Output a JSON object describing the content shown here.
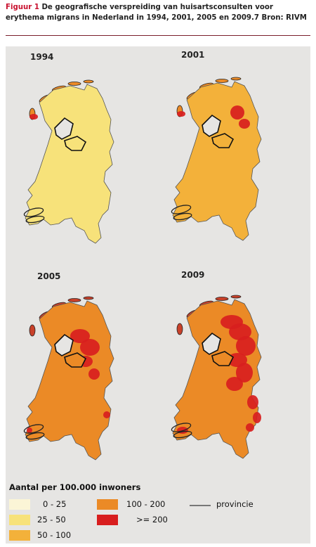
{
  "caption": {
    "label": "Figuur 1",
    "text": "De geografische verspreiding van huisartsconsulten voor erythema migrans in Nederland in 1994, 2001, 2005 en 2009.7 Bron: RIVM"
  },
  "maps": [
    {
      "year": "1994",
      "dominant": "25 - 50"
    },
    {
      "year": "2001",
      "dominant": "50 - 100"
    },
    {
      "year": "2005",
      "dominant": "100 - 200"
    },
    {
      "year": "2009",
      "dominant": "100 - 200"
    }
  ],
  "legend": {
    "title": "Aantal per 100.000 inwoners",
    "classes": [
      {
        "label": "0 - 25",
        "color": "#fbf5d6"
      },
      {
        "label": "25 - 50",
        "color": "#f7e27a"
      },
      {
        "label": "50 - 100",
        "color": "#f3b13a"
      },
      {
        "label": "100 - 200",
        "color": "#eb8a26"
      },
      {
        "label": ">= 200",
        "color": "#d81e1e"
      }
    ],
    "province_label": "provincie"
  },
  "colors": {
    "panel": "#e6e5e3",
    "water_outline": "#222222",
    "province_line": "#777777"
  }
}
